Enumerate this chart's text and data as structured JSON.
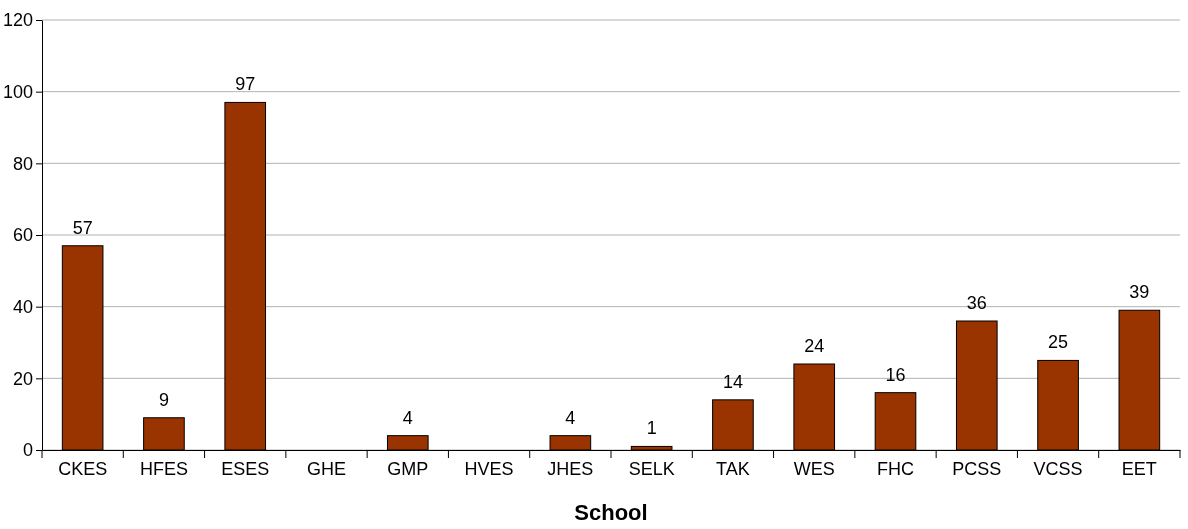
{
  "chart_data": {
    "type": "bar",
    "xlabel": "School",
    "categories": [
      "CKES",
      "HFES",
      "ESES",
      "GHE",
      "GMP",
      "HVES",
      "JHES",
      "SELK",
      "TAK",
      "WES",
      "FHC",
      "PCSS",
      "VCSS",
      "EET"
    ],
    "values": [
      57,
      9,
      97,
      null,
      4,
      null,
      4,
      1,
      14,
      24,
      16,
      36,
      25,
      39
    ],
    "color": "#993300",
    "ylim": [
      0,
      120
    ],
    "yticks": [
      0,
      20,
      40,
      60,
      80,
      100,
      120
    ],
    "grid": "y",
    "data_labels": true
  }
}
